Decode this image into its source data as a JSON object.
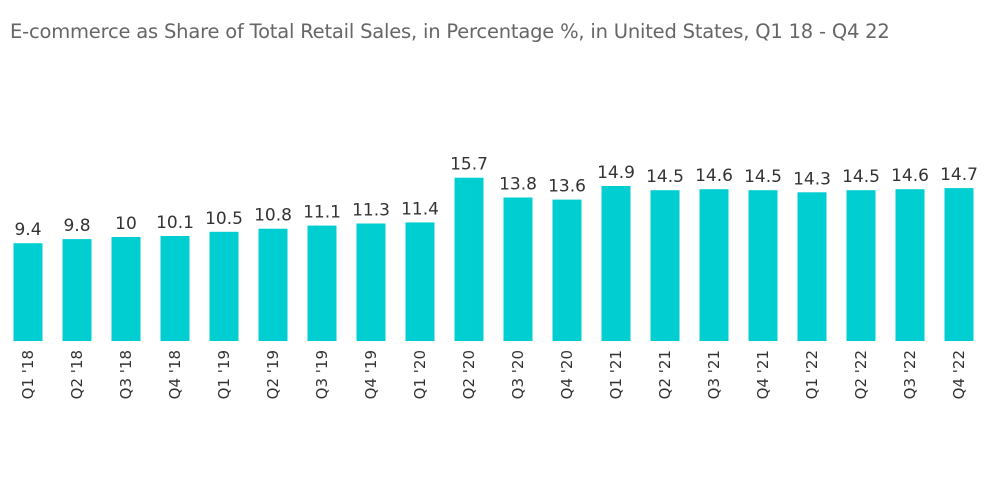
{
  "chart_data": {
    "type": "bar",
    "title": "E-commerce as Share of Total Retail Sales, in Percentage %, in United States, Q1 18 - Q4 22",
    "categories": [
      "Q1 '18",
      "Q2 '18",
      "Q3 '18",
      "Q4 '18",
      "Q1 '19",
      "Q2 '19",
      "Q3 '19",
      "Q4 '19",
      "Q1 '20",
      "Q2 '20",
      "Q3 '20",
      "Q4 '20",
      "Q1 '21",
      "Q2 '21",
      "Q3 '21",
      "Q4 '21",
      "Q1 '22",
      "Q2 '22",
      "Q3 '22",
      "Q4 '22"
    ],
    "values": [
      9.4,
      9.8,
      10,
      10.1,
      10.5,
      10.8,
      11.1,
      11.3,
      11.4,
      15.7,
      13.8,
      13.6,
      14.9,
      14.5,
      14.6,
      14.5,
      14.3,
      14.5,
      14.6,
      14.7
    ],
    "value_labels": [
      "9.4",
      "9.8",
      "10",
      "10.1",
      "10.5",
      "10.8",
      "11.1",
      "11.3",
      "11.4",
      "15.7",
      "13.8",
      "13.6",
      "14.9",
      "14.5",
      "14.6",
      "14.5",
      "14.3",
      "14.5",
      "14.6",
      "14.7"
    ],
    "xlabel": "",
    "ylabel": "",
    "ylim": [
      0,
      20
    ],
    "grid": false,
    "legend": "none",
    "bar_color": "#00CED1"
  }
}
